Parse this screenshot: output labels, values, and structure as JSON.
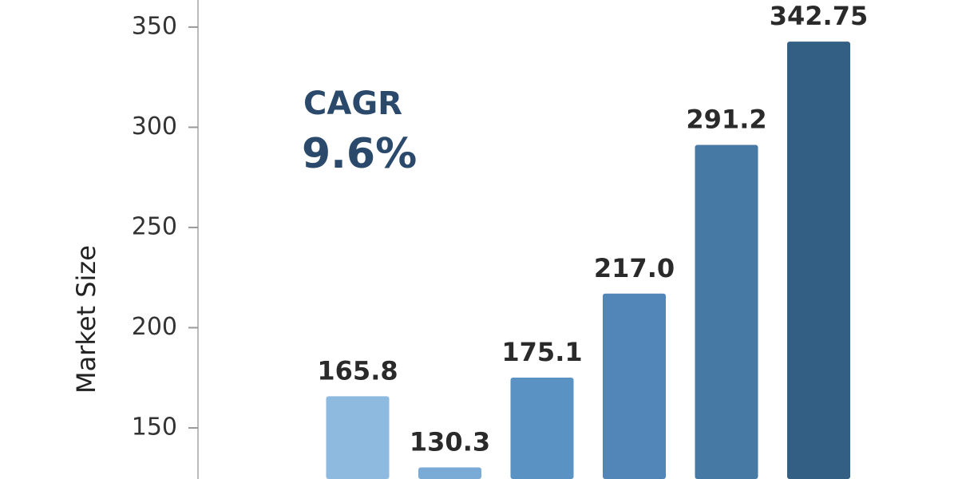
{
  "chart_data": {
    "type": "bar",
    "y_label": "Market Size",
    "annotations": [
      "CAGR",
      "9.6%"
    ],
    "categories": [
      null,
      null,
      null,
      null,
      null,
      null
    ],
    "values": [
      165.8,
      130.3,
      175.1,
      217.0,
      291.2,
      342.75
    ],
    "value_labels": [
      "165.8",
      "130.3",
      "175.1",
      "217.0",
      "291.2",
      "342.75"
    ],
    "colors": [
      "#8dbade",
      "#7aaad6",
      "#5b92c4",
      "#5286b8",
      "#467aa4",
      "#345f84"
    ],
    "ylim": [
      124.5,
      363.5
    ],
    "yticks": [
      150,
      200,
      250,
      300,
      350
    ],
    "grid": false
  }
}
